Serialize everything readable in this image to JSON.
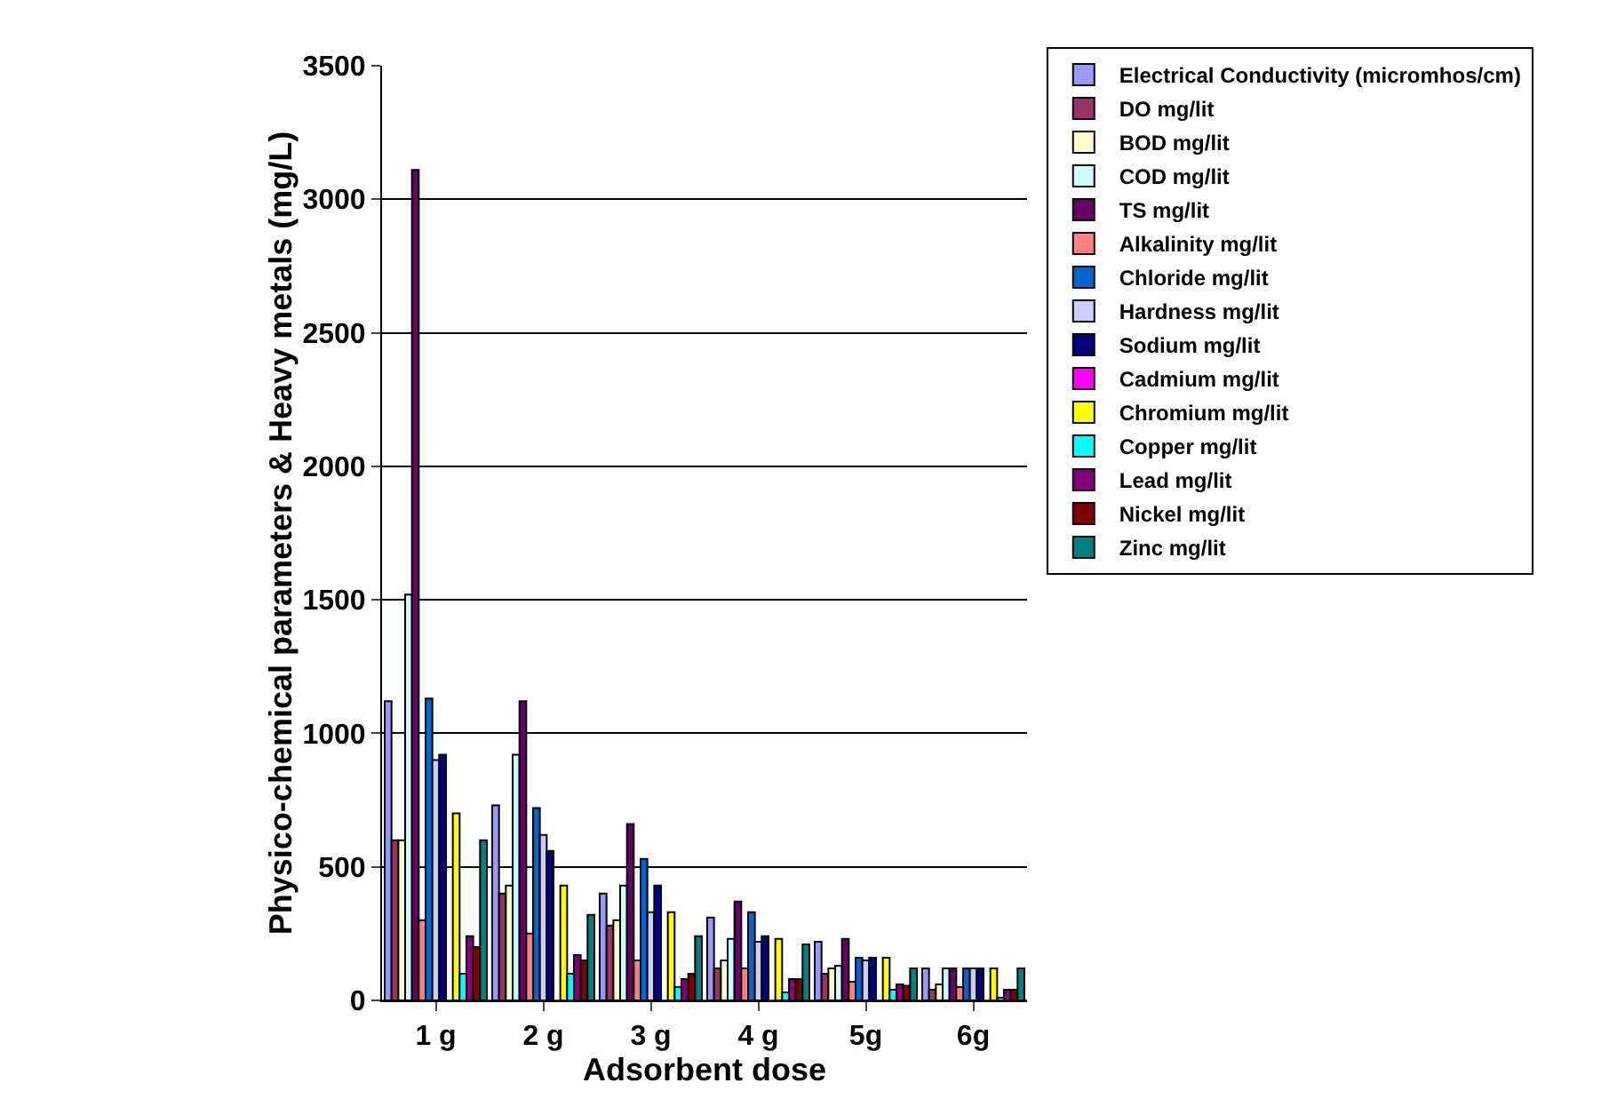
{
  "chart_data": {
    "type": "bar",
    "xlabel": "Adsorbent dose",
    "ylabel": "Physico-chemical parameters & Heavy metals (mg/L)",
    "categories": [
      "1 g",
      "2 g",
      "3 g",
      "4 g",
      "5g",
      "6g"
    ],
    "ylim": [
      0,
      3500
    ],
    "yticks": [
      0,
      500,
      1000,
      1500,
      2000,
      2500,
      3000,
      3500
    ],
    "grid": "y",
    "legend": "right",
    "series": [
      {
        "name": "Electrical Conductivity (micromhos/cm)",
        "color": "#9999ff",
        "values": [
          1120,
          730,
          400,
          310,
          220,
          120
        ]
      },
      {
        "name": "DO mg/lit",
        "color": "#993366",
        "values": [
          600,
          400,
          280,
          120,
          100,
          40
        ]
      },
      {
        "name": "BOD mg/lit",
        "color": "#ffffcc",
        "values": [
          600,
          430,
          300,
          150,
          120,
          60
        ]
      },
      {
        "name": "COD mg/lit",
        "color": "#ccffff",
        "values": [
          1520,
          920,
          430,
          230,
          130,
          120
        ]
      },
      {
        "name": "TS mg/lit",
        "color": "#660066",
        "values": [
          3110,
          1120,
          660,
          370,
          230,
          120
        ]
      },
      {
        "name": "Alkalinity mg/lit",
        "color": "#ff8080",
        "values": [
          300,
          250,
          150,
          120,
          70,
          50
        ]
      },
      {
        "name": "Chloride mg/lit",
        "color": "#0066cc",
        "values": [
          1130,
          720,
          530,
          330,
          160,
          120
        ]
      },
      {
        "name": "Hardness mg/lit",
        "color": "#ccccff",
        "values": [
          900,
          620,
          330,
          220,
          150,
          120
        ]
      },
      {
        "name": "Sodium mg/lit",
        "color": "#000080",
        "values": [
          920,
          560,
          430,
          240,
          160,
          120
        ]
      },
      {
        "name": "Cadmium mg/lit",
        "color": "#ff00ff",
        "values": [
          null,
          null,
          null,
          null,
          null,
          null
        ]
      },
      {
        "name": "Chromium mg/lit",
        "color": "#ffff00",
        "values": [
          700,
          430,
          330,
          230,
          160,
          120
        ]
      },
      {
        "name": "Copper mg/lit",
        "color": "#00ffff",
        "values": [
          100,
          100,
          50,
          30,
          40,
          10
        ]
      },
      {
        "name": "Lead mg/lit",
        "color": "#800080",
        "values": [
          240,
          170,
          80,
          80,
          60,
          40
        ]
      },
      {
        "name": "Nickel mg/lit",
        "color": "#800000",
        "values": [
          200,
          150,
          100,
          80,
          55,
          40
        ]
      },
      {
        "name": "Zinc mg/lit",
        "color": "#008080",
        "values": [
          600,
          320,
          240,
          210,
          120,
          120
        ]
      }
    ]
  }
}
